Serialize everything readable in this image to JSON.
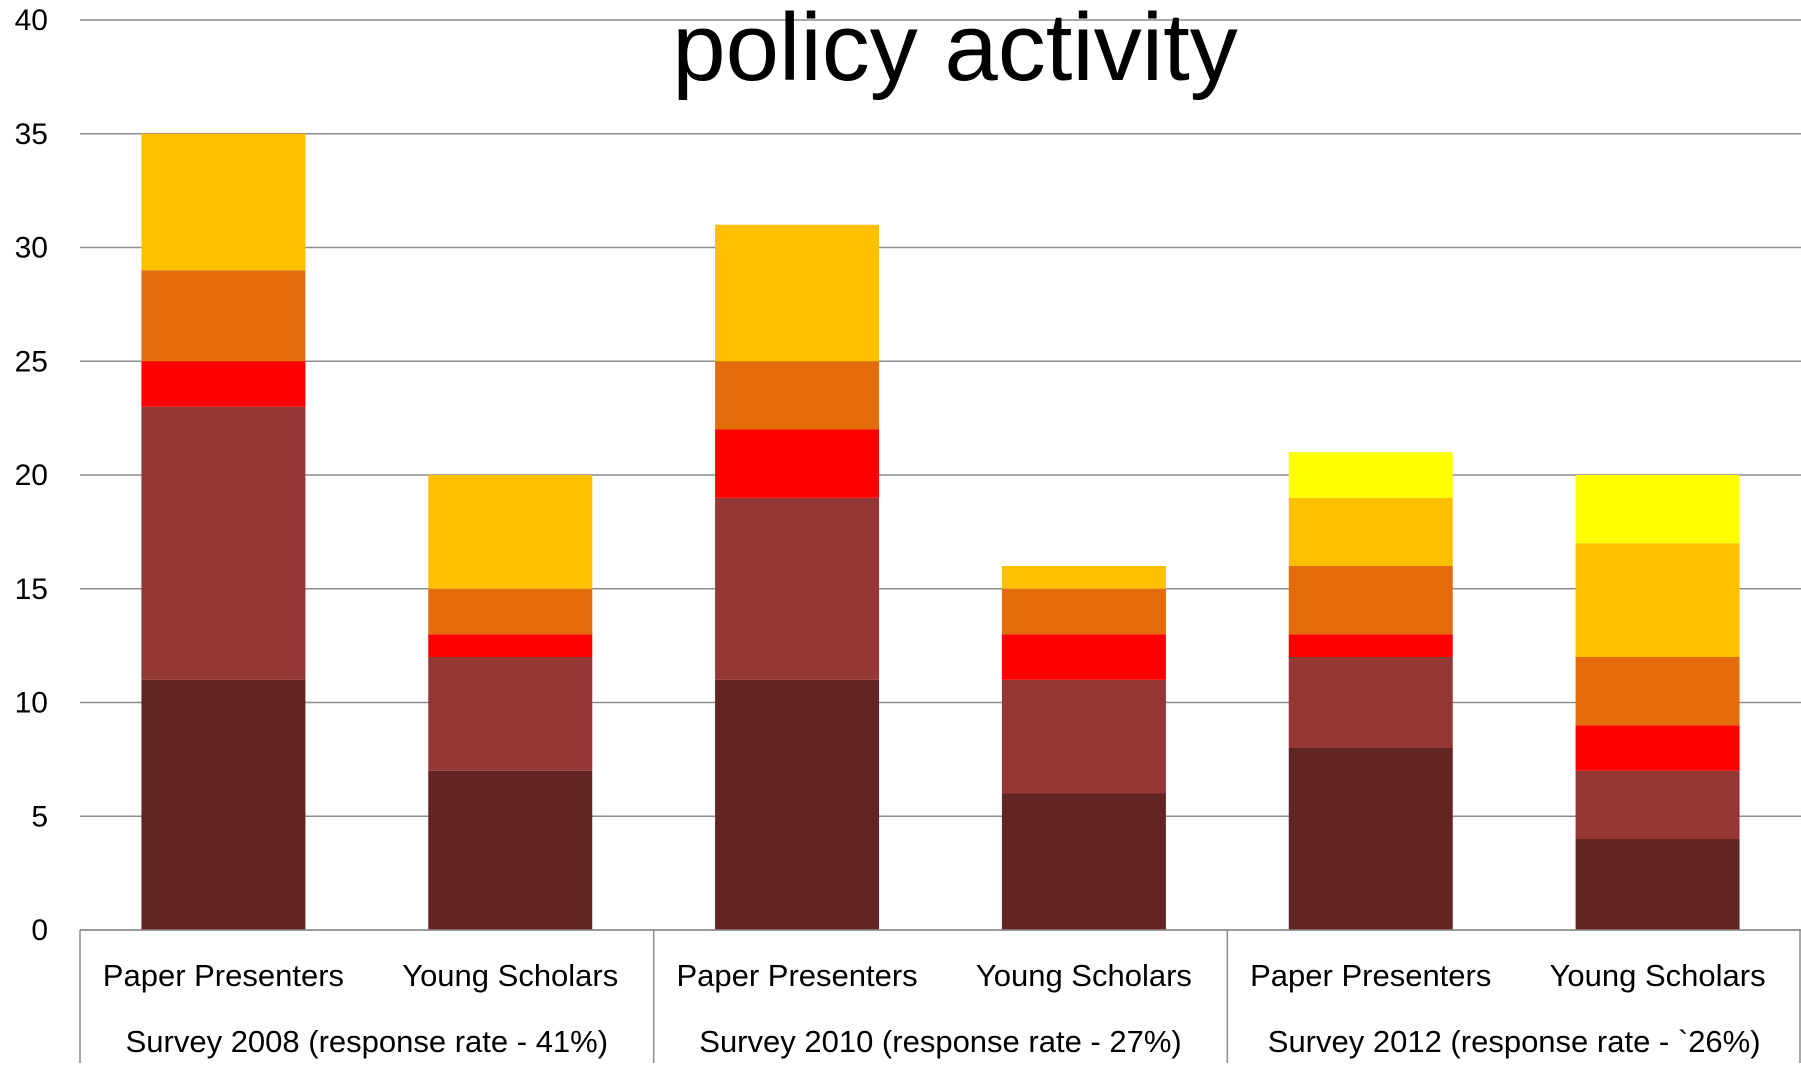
{
  "chart_data": {
    "type": "bar",
    "stacked": true,
    "title": "policy activity",
    "xlabel": "",
    "ylabel": "",
    "ylim": [
      0,
      40
    ],
    "yticks": [
      0,
      5,
      10,
      15,
      20,
      25,
      30,
      35,
      40
    ],
    "grid": true,
    "legend": "none",
    "categories": [
      "Paper Presenters",
      "Young Scholars",
      "Paper Presenters",
      "Young Scholars",
      "Paper Presenters",
      "Young Scholars"
    ],
    "groups": [
      {
        "label": "Survey 2008 (response rate - 41%)",
        "span": [
          0,
          1
        ]
      },
      {
        "label": "Survey 2010 (response rate - 27%)",
        "span": [
          2,
          3
        ]
      },
      {
        "label": "Survey 2012 (response rate - `26%)",
        "span": [
          4,
          5
        ]
      }
    ],
    "series": [
      {
        "color": "#632523",
        "values": [
          11,
          7,
          11,
          6,
          8,
          4
        ]
      },
      {
        "color": "#953735",
        "values": [
          12,
          5,
          8,
          5,
          4,
          3
        ]
      },
      {
        "color": "#ff0000",
        "values": [
          2,
          1,
          3,
          2,
          1,
          2
        ]
      },
      {
        "color": "#e46c0a",
        "values": [
          4,
          2,
          3,
          2,
          3,
          3
        ]
      },
      {
        "color": "#ffc000",
        "values": [
          6,
          5,
          6,
          1,
          3,
          5
        ]
      },
      {
        "color": "#ffff00",
        "values": [
          0,
          0,
          0,
          0,
          2,
          3
        ]
      }
    ]
  }
}
